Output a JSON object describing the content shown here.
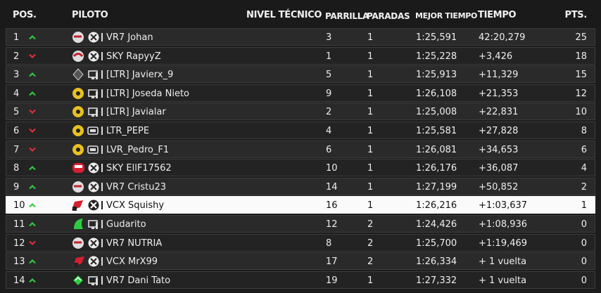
{
  "table": {
    "header": [
      "POS.",
      "PILOTO",
      "NIVEL TÉCNICO",
      "PARRILLA",
      "PARADAS",
      "MEJOR TIEMPO",
      "TIEMPO",
      "PTS."
    ],
    "rows": [
      {
        "pos": 1,
        "name": "VR7 Johan",
        "grid": 3,
        "stops": 1,
        "best": "1:25,591",
        "time": "42:20,279",
        "pts": 25
      },
      {
        "pos": 2,
        "name": "SKY RapyyZ",
        "grid": 1,
        "stops": 1,
        "best": "1:25,228",
        "time": "+3,426",
        "pts": 18
      },
      {
        "pos": 3,
        "name": "[LTR] Javierx_9",
        "grid": 5,
        "stops": 1,
        "best": "1:25,913",
        "time": "+11,329",
        "pts": 15
      },
      {
        "pos": 4,
        "name": "[LTR] Joseda Nieto",
        "grid": 9,
        "stops": 1,
        "best": "1:26,108",
        "time": "+21,353",
        "pts": 12
      },
      {
        "pos": 5,
        "name": "[LTR] Javialar",
        "grid": 2,
        "stops": 1,
        "best": "1:25,008",
        "time": "+22,831",
        "pts": 10
      },
      {
        "pos": 6,
        "name": "LTR_PEPE",
        "grid": 4,
        "stops": 1,
        "best": "1:25,581",
        "time": "+27,828",
        "pts": 8
      },
      {
        "pos": 7,
        "name": "LVR_Pedro_F1",
        "grid": 6,
        "stops": 1,
        "best": "1:26,081",
        "time": "+34,653",
        "pts": 6
      },
      {
        "pos": 8,
        "name": "SKY EllF17562",
        "grid": 10,
        "stops": 1,
        "best": "1:26,176",
        "time": "+36,087",
        "pts": 4
      },
      {
        "pos": 9,
        "name": "VR7 Cristu23",
        "grid": 14,
        "stops": 1,
        "best": "1:27,199",
        "time": "+50,852",
        "pts": 2
      },
      {
        "pos": 10,
        "name": "VCX Squishy",
        "grid": 16,
        "stops": 1,
        "best": "1:26,216",
        "time": "+1:03,637",
        "pts": 1
      },
      {
        "pos": 11,
        "name": "Gudarito",
        "grid": 12,
        "stops": 2,
        "best": "1:24,426",
        "time": "+1:08,936",
        "pts": 0
      },
      {
        "pos": 12,
        "name": "VR7 NUTRIA",
        "grid": 8,
        "stops": 2,
        "best": "1:25,700",
        "time": "+1:19,469",
        "pts": 0
      },
      {
        "pos": 13,
        "name": "VCX MrX99",
        "grid": 17,
        "stops": 2,
        "best": "1:26,334",
        "time": "+ 1 vuelta",
        "pts": 0
      },
      {
        "pos": 14,
        "name": "VR7 Dani Tato",
        "grid": 19,
        "stops": 1,
        "best": "1:27,332",
        "time": "+ 1 vuelta",
        "pts": 0
      }
    ]
  }
}
